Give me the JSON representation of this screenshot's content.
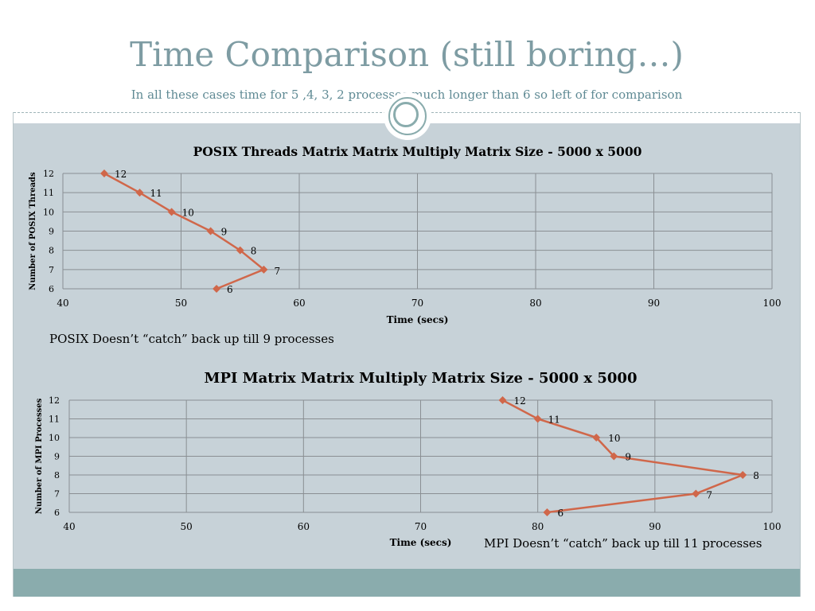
{
  "slide": {
    "title": "Time Comparison (still boring…)",
    "subtitle": "In all these cases time for 5 ,4, 3, 2 processes much longer than 6 so left of for comparison",
    "note1": "POSIX Doesn’t “catch” back up till 9 processes",
    "note2": "MPI Doesn’t “catch” back up till 11 processes"
  },
  "colors": {
    "series": "#d0674a",
    "grid": "#8a8f93",
    "title": "#7e9ca3"
  },
  "chart_data": [
    {
      "type": "line",
      "title": "POSIX Threads Matrix Matrix Multiply Matrix Size - 5000 x 5000",
      "xlabel": "Time (secs)",
      "ylabel": "Number of  POSIX Threads",
      "xlim": [
        40,
        100
      ],
      "ylim": [
        6,
        12
      ],
      "xticks": [
        40,
        50,
        60,
        70,
        80,
        90,
        100
      ],
      "yticks": [
        6,
        7,
        8,
        9,
        10,
        11,
        12
      ],
      "grid": true,
      "series": [
        {
          "x": [
            43.5,
            46.5,
            49.2,
            52.5,
            55,
            57,
            53
          ],
          "y": [
            12,
            11,
            10,
            9,
            8,
            7,
            6
          ],
          "labels": [
            "12",
            "11",
            "10",
            "9",
            "8",
            "7",
            "6"
          ]
        }
      ]
    },
    {
      "type": "line",
      "title": "MPI Matrix Matrix Multiply  Matrix Size - 5000 x 5000",
      "xlabel": "Time (secs)",
      "ylabel": "Number of MPI Processes",
      "xlim": [
        40,
        100
      ],
      "ylim": [
        6,
        12
      ],
      "xticks": [
        40,
        50,
        60,
        70,
        80,
        90,
        100
      ],
      "yticks": [
        6,
        7,
        8,
        9,
        10,
        11,
        12
      ],
      "grid": true,
      "series": [
        {
          "x": [
            77,
            80,
            85,
            86.5,
            97.5,
            93.5,
            80.8
          ],
          "y": [
            12,
            11,
            10,
            9,
            8,
            7,
            6
          ],
          "labels": [
            "12",
            "11",
            "10",
            "9",
            "8",
            "7",
            "6"
          ]
        }
      ]
    }
  ]
}
